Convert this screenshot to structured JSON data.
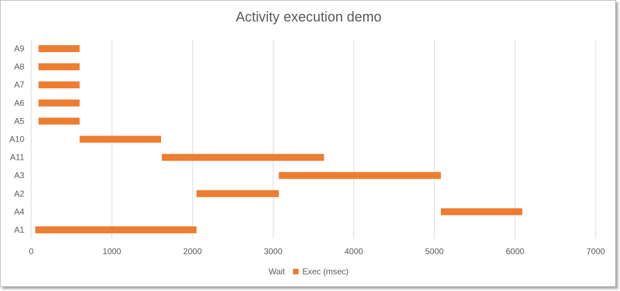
{
  "chart_data": {
    "type": "bar",
    "orientation": "horizontal",
    "stacked": true,
    "title": "Activity execution demo",
    "categories": [
      "A1",
      "A4",
      "A2",
      "A3",
      "A11",
      "A10",
      "A5",
      "A6",
      "A7",
      "A8",
      "A9"
    ],
    "series": [
      {
        "name": "Wait",
        "color": "none",
        "values": [
          50,
          5080,
          2050,
          3070,
          1620,
          600,
          90,
          90,
          90,
          90,
          90
        ]
      },
      {
        "name": "Exec (msec)",
        "color": "#ED7D31",
        "values": [
          2000,
          1010,
          1020,
          2010,
          2010,
          1010,
          510,
          510,
          510,
          510,
          510
        ]
      }
    ],
    "xlim": [
      0,
      7000
    ],
    "x_ticks": [
      "0",
      "1000",
      "2000",
      "3000",
      "4000",
      "5000",
      "6000",
      "7000"
    ],
    "grid": "vertical",
    "legend_position": "bottom"
  }
}
